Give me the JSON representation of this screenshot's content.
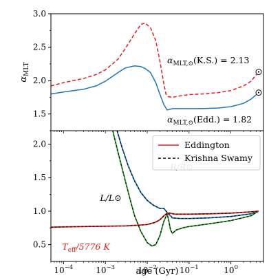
{
  "chart_data": [
    {
      "type": "line",
      "panel": "top",
      "xlabel": "",
      "ylabel_main": "α",
      "ylabel_sub": "MLT",
      "xscale": "log",
      "xlim": [
        5e-05,
        6.0
      ],
      "ylim": [
        1.25,
        3.0
      ],
      "yticks": [
        1.5,
        2.0,
        2.5,
        3.0
      ],
      "ytick_labels": [
        "1.5",
        "2.0",
        "2.5",
        "3.0"
      ],
      "series": [
        {
          "color": "#e41a1c",
          "dash": "5,3",
          "x": [
            5e-05,
            0.0001,
            0.0003,
            0.0006,
            0.001,
            0.002,
            0.003,
            0.005,
            0.007,
            0.009,
            0.012,
            0.016,
            0.02,
            0.025,
            0.028,
            0.032,
            0.04,
            0.06,
            0.1,
            0.2,
            0.5,
            1.0,
            2.0,
            3.0,
            4.6
          ],
          "y": [
            1.92,
            1.97,
            2.03,
            2.09,
            2.16,
            2.32,
            2.48,
            2.7,
            2.84,
            2.86,
            2.79,
            2.6,
            2.3,
            1.95,
            1.8,
            1.76,
            1.75,
            1.77,
            1.79,
            1.8,
            1.82,
            1.85,
            1.92,
            1.99,
            2.13
          ]
        },
        {
          "color": "#1f77b4",
          "dash": "",
          "x": [
            5e-05,
            0.0001,
            0.0003,
            0.0006,
            0.001,
            0.002,
            0.003,
            0.005,
            0.007,
            0.009,
            0.012,
            0.016,
            0.02,
            0.025,
            0.03,
            0.035,
            0.04,
            0.06,
            0.1,
            0.2,
            0.5,
            1.0,
            2.0,
            3.0,
            4.6
          ],
          "y": [
            1.8,
            1.83,
            1.87,
            1.92,
            1.99,
            2.12,
            2.19,
            2.22,
            2.21,
            2.18,
            2.12,
            1.97,
            1.8,
            1.64,
            1.56,
            1.57,
            1.58,
            1.58,
            1.58,
            1.58,
            1.59,
            1.61,
            1.66,
            1.72,
            1.82
          ]
        }
      ],
      "annotations": [
        {
          "main": "α",
          "sub": "MLT,⊙",
          "rest": "(K.S.) = 2.13"
        },
        {
          "main": "α",
          "sub": "MLT,⊙",
          "rest": "(Edd.) = 1.82"
        }
      ],
      "sun_markers": [
        {
          "x": 4.6,
          "y": 2.13
        },
        {
          "x": 4.6,
          "y": 1.82
        }
      ]
    },
    {
      "type": "line",
      "panel": "bottom",
      "xlabel": "age (Gyr)",
      "xscale": "log",
      "xlim": [
        5e-05,
        6.0
      ],
      "ylim": [
        0.25,
        2.2
      ],
      "xticks": [
        0.0001,
        0.001,
        0.01,
        0.1,
        1
      ],
      "xtick_labels": [
        {
          "base": "10",
          "exp": "−4"
        },
        {
          "base": "10",
          "exp": "−3"
        },
        {
          "base": "10",
          "exp": "−2"
        },
        {
          "base": "10",
          "exp": "−1"
        },
        {
          "base": "10",
          "exp": "0"
        }
      ],
      "yticks": [
        0.5,
        1.0,
        1.5,
        2.0
      ],
      "ytick_labels": [
        "0.5",
        "1.0",
        "1.5",
        "2.0"
      ],
      "legend": {
        "placement": "top-right",
        "entries": [
          {
            "label": "Eddington",
            "color": "#e41a1c",
            "dash": ""
          },
          {
            "label": "Krishna Swamy",
            "color": "#000000",
            "dash": "4,3"
          }
        ]
      },
      "series": [
        {
          "label": "R/R⊙",
          "color": "#1f77b4",
          "x": [
            0.0019,
            0.0025,
            0.0035,
            0.005,
            0.007,
            0.01,
            0.014,
            0.02,
            0.025,
            0.03,
            0.035,
            0.04,
            0.06,
            0.1,
            0.3,
            1.0,
            3.0,
            4.6
          ],
          "y": [
            2.2,
            1.95,
            1.68,
            1.45,
            1.28,
            1.16,
            1.09,
            1.04,
            1.04,
            0.98,
            0.94,
            0.9,
            0.89,
            0.89,
            0.9,
            0.92,
            0.96,
            1.0
          ]
        },
        {
          "label": "L/L⊙",
          "color": "#2ca02c",
          "x": [
            0.0015,
            0.002,
            0.003,
            0.004,
            0.005,
            0.007,
            0.01,
            0.013,
            0.016,
            0.02,
            0.025,
            0.03,
            0.033,
            0.036,
            0.04,
            0.05,
            0.07,
            0.1,
            0.3,
            1.0,
            3.0,
            4.6
          ],
          "y": [
            2.2,
            1.88,
            1.45,
            1.15,
            0.93,
            0.7,
            0.53,
            0.48,
            0.5,
            0.63,
            0.85,
            0.96,
            0.85,
            0.72,
            0.67,
            0.72,
            0.75,
            0.77,
            0.81,
            0.86,
            0.93,
            1.0
          ]
        },
        {
          "label": "Teff/5776 K",
          "color": "#e41a1c",
          "x": [
            5e-05,
            0.0001,
            0.0003,
            0.001,
            0.003,
            0.006,
            0.01,
            0.015,
            0.02,
            0.025,
            0.03,
            0.035,
            0.045,
            0.07,
            0.1,
            0.3,
            1.0,
            3.0,
            4.6
          ],
          "y": [
            0.76,
            0.765,
            0.77,
            0.775,
            0.78,
            0.79,
            0.8,
            0.83,
            0.87,
            0.93,
            0.97,
            0.97,
            0.955,
            0.955,
            0.955,
            0.96,
            0.97,
            0.99,
            1.0
          ]
        }
      ],
      "labels": [
        {
          "name": "R",
          "sub": "",
          "text": "R/R⊙",
          "color": "#1f77b4"
        },
        {
          "name": "L",
          "sub": "",
          "text": "L/L⊙",
          "color": "#2ca02c"
        },
        {
          "name": "Teff",
          "main": "T",
          "sub": "eff",
          "rest": "/5776 K",
          "color": "#e41a1c"
        }
      ]
    }
  ]
}
